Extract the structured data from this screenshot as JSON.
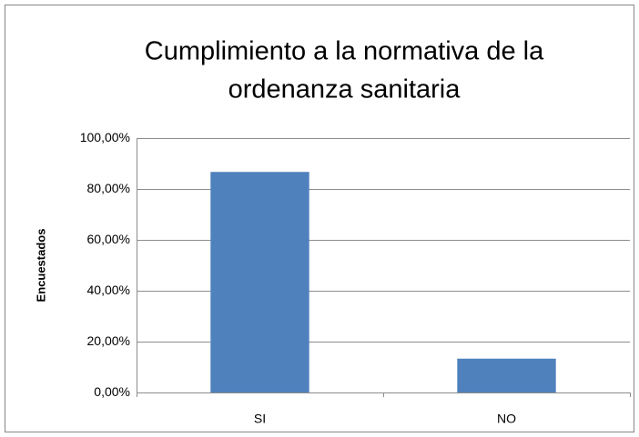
{
  "chart_data": {
    "type": "bar",
    "title": [
      "Cumplimiento a la normativa de la",
      "ordenanza sanitaria"
    ],
    "y_label": "Encuestados",
    "categories": [
      "SI",
      "NO"
    ],
    "values": [
      86.7,
      13.3
    ],
    "color": "#4f81bd",
    "ylim": [
      0,
      100
    ],
    "yticks": [
      {
        "value": 0,
        "label": "0,00%"
      },
      {
        "value": 20,
        "label": "20,00%"
      },
      {
        "value": 40,
        "label": "40,00%"
      },
      {
        "value": 60,
        "label": "60,00%"
      },
      {
        "value": 80,
        "label": "80,00%"
      },
      {
        "value": 100,
        "label": "100,00%"
      }
    ],
    "grid": true
  }
}
